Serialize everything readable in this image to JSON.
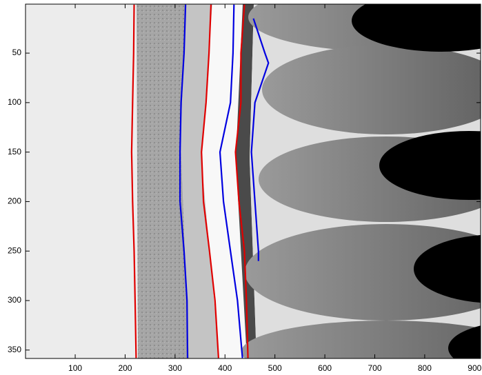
{
  "chart_data": {
    "type": "image-overlay",
    "xlim": [
      0.5,
      912
    ],
    "ylim": [
      0.5,
      358.5
    ],
    "y_reversed": true,
    "xticks": [
      100,
      200,
      300,
      400,
      500,
      600,
      700,
      800,
      900
    ],
    "yticks": [
      50,
      100,
      150,
      200,
      250,
      300,
      350
    ],
    "grid": false,
    "series": [
      {
        "color": "#e00000",
        "x": [
          218,
          217,
          215,
          213,
          215,
          218,
          220,
          222
        ],
        "y": [
          1,
          50,
          100,
          150,
          200,
          250,
          300,
          358
        ]
      },
      {
        "color": "#0000e0",
        "x": [
          321,
          318,
          312,
          310,
          310,
          318,
          324,
          325
        ],
        "y": [
          1,
          50,
          100,
          150,
          200,
          250,
          300,
          358
        ]
      },
      {
        "color": "#e00000",
        "x": [
          372,
          368,
          362,
          353,
          357,
          369,
          380,
          387
        ],
        "y": [
          1,
          50,
          100,
          150,
          200,
          250,
          300,
          358
        ]
      },
      {
        "color": "#0000e0",
        "x": [
          418,
          416,
          411,
          390,
          397,
          411,
          425,
          435
        ],
        "y": [
          1,
          50,
          100,
          150,
          200,
          250,
          300,
          358
        ]
      },
      {
        "color": "#e00000",
        "x": [
          439,
          432,
          432,
          421,
          428,
          439,
          443,
          446
        ],
        "y": [
          1,
          50,
          100,
          150,
          200,
          250,
          300,
          358
        ]
      },
      {
        "color": "#0000e0",
        "x": [
          457,
          480,
          487,
          460,
          453,
          460,
          467,
          467
        ],
        "y": [
          15,
          50,
          60,
          100,
          150,
          200,
          250,
          260
        ]
      }
    ]
  }
}
